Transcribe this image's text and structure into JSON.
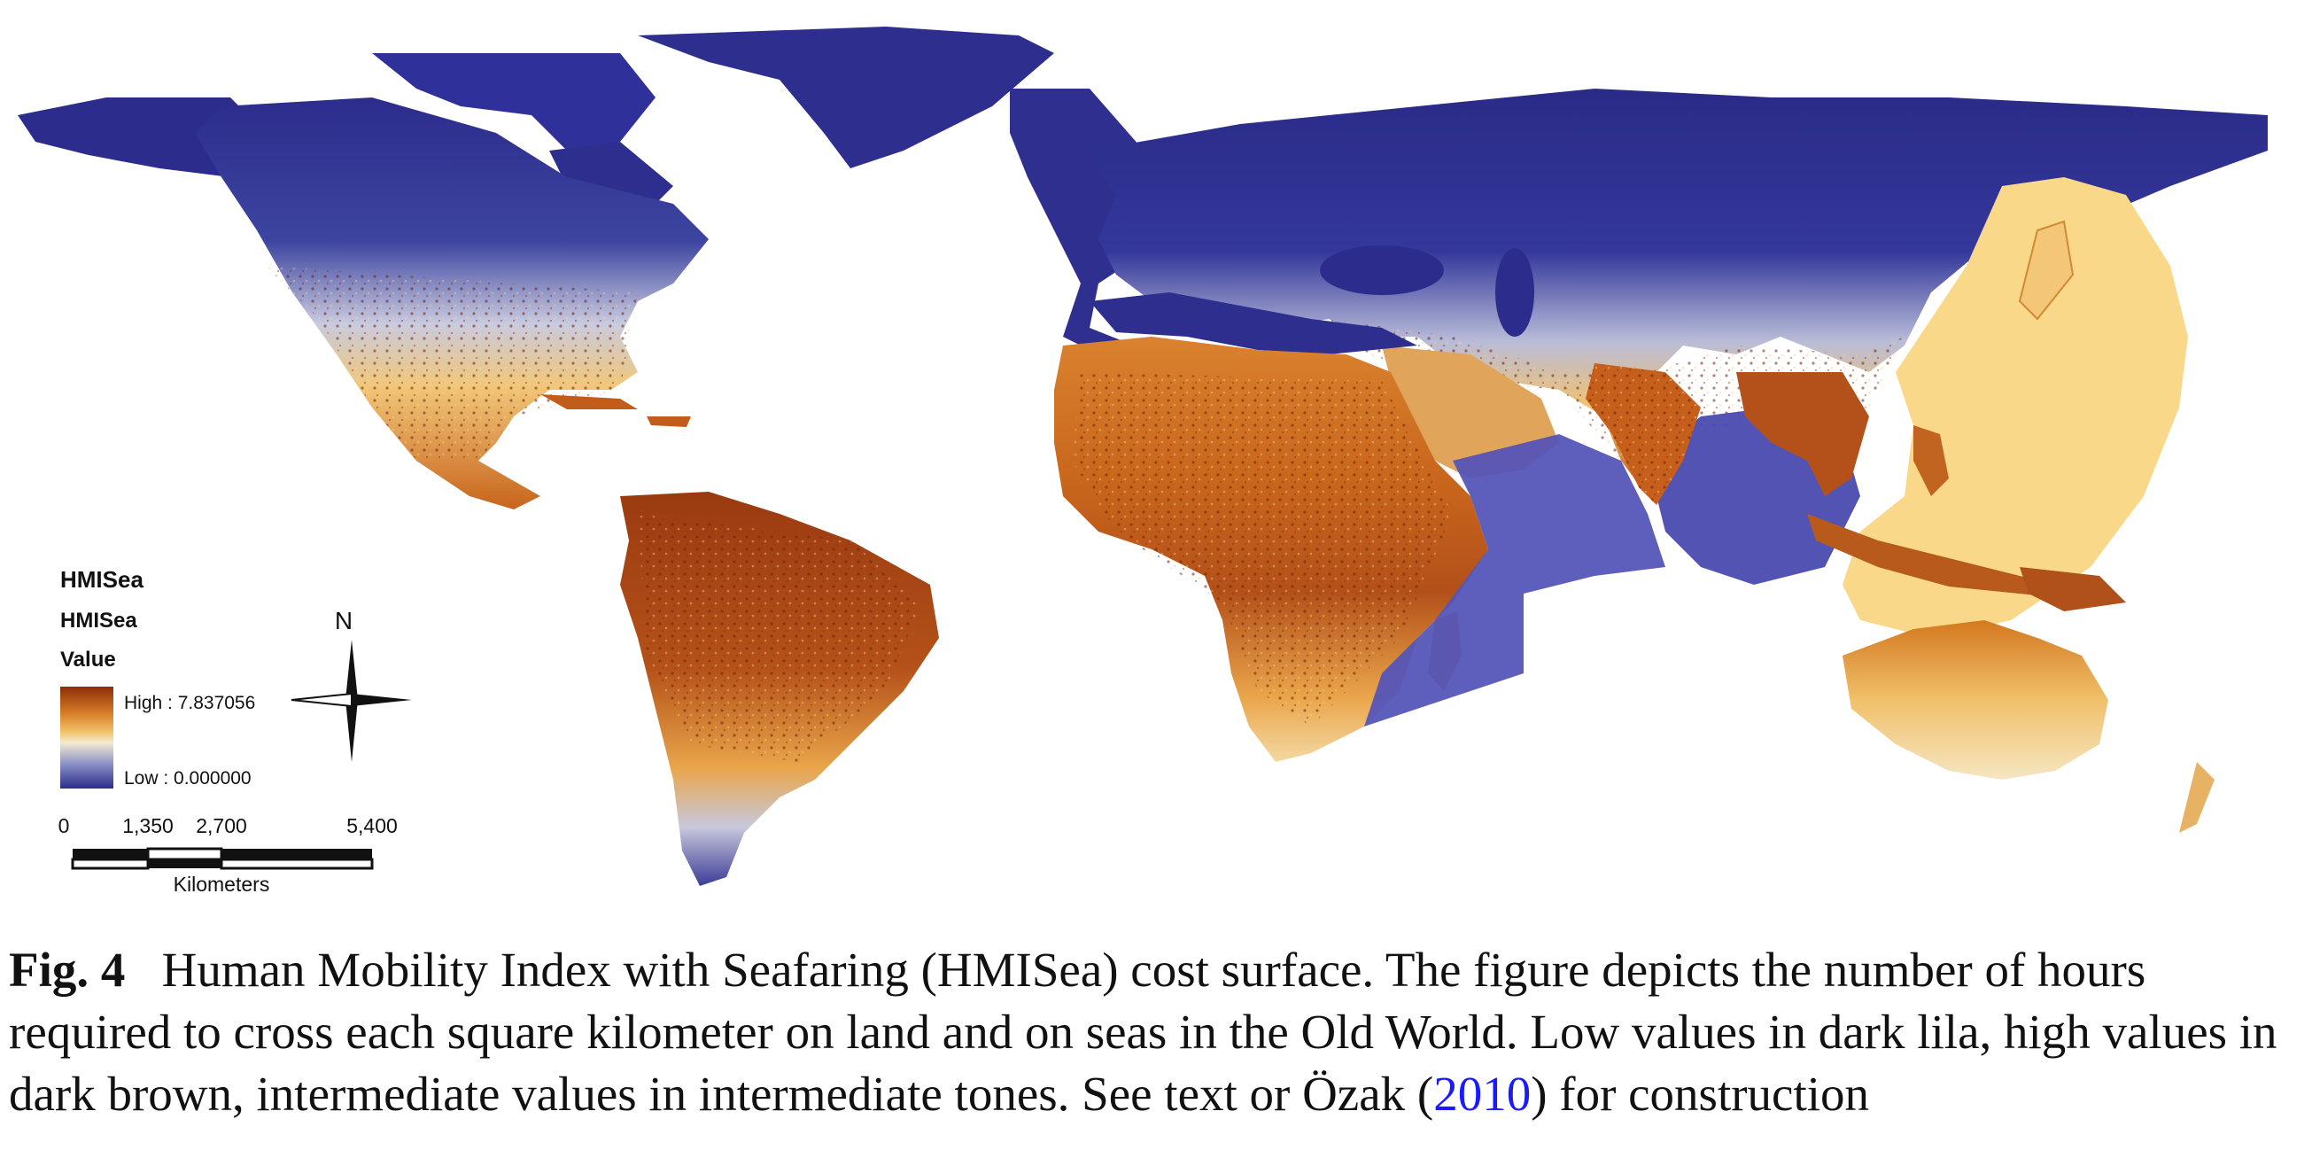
{
  "legend": {
    "layer_name": "HMISea",
    "field_name": "HMISea",
    "value_label": "Value",
    "high_label": "High : 7.837056",
    "low_label": "Low : 0.000000",
    "high_value": 7.837056,
    "low_value": 0.0,
    "colors": {
      "high": "#8b2e0a",
      "mid": "#f2c46a",
      "light": "#f4ebd2",
      "low": "#2c2c8c"
    }
  },
  "compass": {
    "north_label": "N"
  },
  "scalebar": {
    "ticks": [
      "0",
      "1,350",
      "2,700",
      "5,400"
    ],
    "units": "Kilometers"
  },
  "caption": {
    "label": "Fig. 4",
    "text": "Human Mobility Index with Seafaring (HMISea) cost surface. The figure depicts the number of hours required to cross each square kilometer on land and on seas in the Old World. Low values in dark lila, high values in dark brown, intermediate values in intermediate tones. See text or Özak (",
    "citation_year": "2010",
    "text_end": ") for construction"
  }
}
